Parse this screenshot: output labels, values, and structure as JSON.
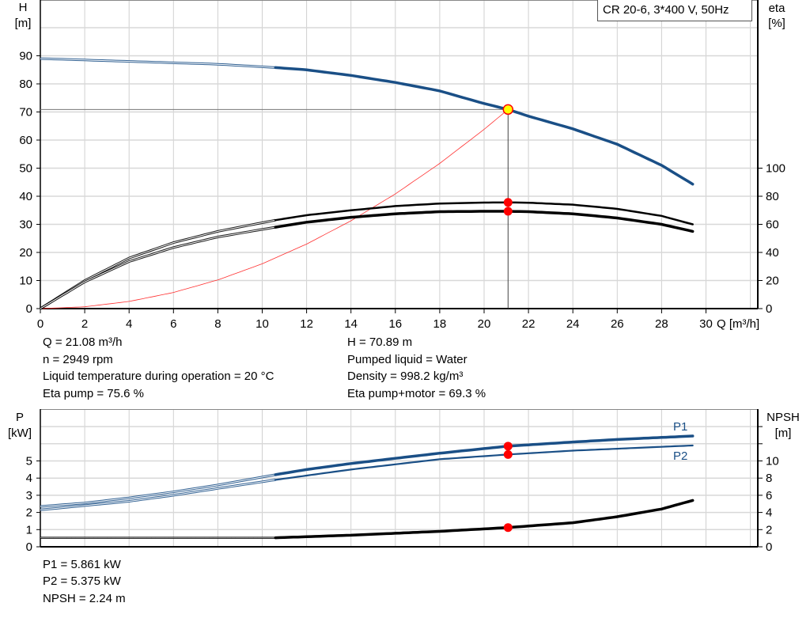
{
  "chart_data": [
    {
      "type": "line",
      "title": "CR 20-6, 3*400 V, 50Hz",
      "xlabel": "Q [m³/h]",
      "ylabel_left": [
        "H",
        "[m]"
      ],
      "ylabel_right": [
        "eta",
        "[%]"
      ],
      "xlim": [
        0,
        32
      ],
      "ylim_left": [
        0,
        100
      ],
      "ylim_right": [
        0,
        100
      ],
      "xticks": [
        "0",
        "2",
        "4",
        "6",
        "8",
        "10",
        "12",
        "14",
        "16",
        "18",
        "20",
        "22",
        "24",
        "26",
        "28",
        "30"
      ],
      "yticks_left": [
        "0",
        "10",
        "20",
        "30",
        "40",
        "50",
        "60",
        "70",
        "80",
        "90"
      ],
      "yticks_right": [
        "0",
        "20",
        "40",
        "60",
        "80",
        "100"
      ],
      "grid": true,
      "series": [
        {
          "key": "H",
          "axis": "left",
          "color": "#1a4f86",
          "min_q": 10.6,
          "x": [
            0,
            2,
            4,
            6,
            8,
            10.6,
            12,
            14,
            16,
            18,
            20,
            21.08,
            22,
            24,
            26,
            28,
            29.4
          ],
          "y": [
            89,
            88.5,
            88,
            87.5,
            87,
            85.8,
            85,
            83,
            80.5,
            77.5,
            73,
            70.89,
            68.5,
            64,
            58.5,
            51,
            44.3
          ]
        },
        {
          "key": "eta_pump",
          "axis": "right",
          "color": "#000000",
          "min_q": 10.6,
          "x": [
            0,
            2,
            4,
            6,
            8,
            10.6,
            12,
            14,
            16,
            18,
            20,
            21.08,
            22,
            24,
            26,
            28,
            29.4
          ],
          "y": [
            0,
            20,
            36,
            47,
            55,
            63,
            66.5,
            70,
            73,
            74.8,
            75.5,
            75.6,
            75.4,
            74,
            71,
            66,
            60
          ]
        },
        {
          "key": "eta_pump_motor",
          "axis": "right",
          "color": "#000000",
          "min_q": 10.6,
          "x": [
            0,
            2,
            4,
            6,
            8,
            10.6,
            12,
            14,
            16,
            18,
            20,
            21.08,
            22,
            24,
            26,
            28,
            29.4
          ],
          "y": [
            0,
            19,
            33.5,
            43.5,
            51,
            58,
            61.5,
            65,
            67.5,
            69,
            69.3,
            69.3,
            69,
            67.5,
            64.5,
            60,
            55
          ]
        },
        {
          "key": "system_curve",
          "axis": "left",
          "color": "#ff3030",
          "x": [
            0,
            2,
            4,
            6,
            8,
            10,
            12,
            14,
            16,
            18,
            20,
            21.08
          ],
          "y": [
            0,
            0.64,
            2.55,
            5.74,
            10.21,
            15.95,
            22.97,
            31.26,
            40.83,
            51.68,
            63.81,
            70.89
          ]
        }
      ],
      "operating_point": {
        "Q": 21.08,
        "H": 70.89,
        "eta_pump": 75.6,
        "eta_pump_motor": 69.3
      }
    },
    {
      "type": "line",
      "xlim": [
        0,
        32
      ],
      "ylabel_left": [
        "P",
        "[kW]"
      ],
      "ylabel_right": [
        "NPSH",
        "[m]"
      ],
      "ylim_left": [
        0,
        8
      ],
      "ylim_right": [
        0,
        16
      ],
      "yticks_left": [
        "0",
        "1",
        "2",
        "3",
        "4",
        "5"
      ],
      "yticks_right": [
        "0",
        "2",
        "4",
        "6",
        "8",
        "10"
      ],
      "grid": true,
      "series": [
        {
          "name": "P1",
          "axis": "left",
          "color": "#1a4f86",
          "min_q": 10.6,
          "x": [
            0,
            2,
            4,
            6,
            8,
            10.6,
            12,
            14,
            16,
            18,
            21.08,
            24,
            26,
            29.4
          ],
          "y": [
            2.35,
            2.55,
            2.85,
            3.2,
            3.6,
            4.2,
            4.5,
            4.85,
            5.15,
            5.45,
            5.861,
            6.1,
            6.25,
            6.45
          ]
        },
        {
          "name": "P2",
          "axis": "left",
          "color": "#1a4f86",
          "min_q": 10.6,
          "x": [
            0,
            2,
            4,
            6,
            8,
            10.6,
            14,
            18,
            21.08,
            24,
            29.4
          ],
          "y": [
            2.15,
            2.4,
            2.65,
            3.0,
            3.4,
            3.9,
            4.5,
            5.1,
            5.375,
            5.6,
            5.9
          ]
        },
        {
          "key": "NPSH",
          "axis": "right",
          "color": "#000000",
          "min_q": 10.6,
          "x": [
            0,
            10.6,
            14,
            18,
            21.08,
            24,
            26,
            28,
            29.4
          ],
          "y": [
            1.05,
            1.05,
            1.35,
            1.8,
            2.24,
            2.8,
            3.5,
            4.4,
            5.4
          ]
        }
      ],
      "operating_point": {
        "Q": 21.08,
        "P1": 5.861,
        "P2": 5.375,
        "NPSH": 2.24
      }
    }
  ],
  "info": {
    "q": "Q = 21.08 m³/h",
    "n": "n = 2949 rpm",
    "temp": "Liquid temperature during operation = 20 °C",
    "eta_pump": "Eta pump = 75.6 %",
    "h": "H = 70.89 m",
    "liquid": "Pumped liquid = Water",
    "density": "Density = 998.2 kg/m³",
    "eta_pm": "Eta pump+motor = 69.3 %",
    "p1": "P1 = 5.861 kW",
    "p2": "P2 = 5.375 kW",
    "npsh": "NPSH = 2.24 m"
  }
}
